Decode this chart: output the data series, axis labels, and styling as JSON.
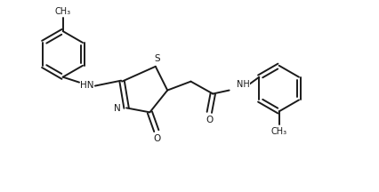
{
  "bg_color": "#ffffff",
  "line_color": "#1a1a1a",
  "line_width": 1.4,
  "font_size": 7.5,
  "figsize": [
    4.26,
    2.16
  ],
  "dpi": 100,
  "xlim": [
    0,
    8.5
  ],
  "ylim": [
    0,
    4.3
  ]
}
